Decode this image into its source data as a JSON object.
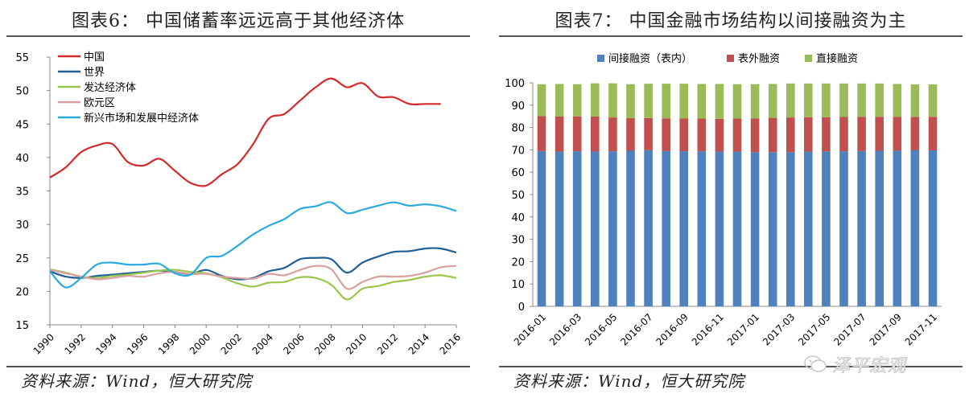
{
  "left": {
    "title": "图表6：  中国储蓄率远远高于其他经济体",
    "source": "资料来源：Wind，恒大研究院"
  },
  "right": {
    "title": "图表7：  中国金融市场结构以间接融资为主",
    "source": "资料来源：Wind，恒大研究院"
  },
  "watermark": {
    "text": "泽平宏观",
    "icon": "wechat-bubble-icon"
  },
  "chart_data": [
    {
      "type": "line",
      "title": "",
      "xlabel": "",
      "ylabel": "",
      "x": [
        1990,
        1991,
        1992,
        1993,
        1994,
        1995,
        1996,
        1997,
        1998,
        1999,
        2000,
        2001,
        2002,
        2003,
        2004,
        2005,
        2006,
        2007,
        2008,
        2009,
        2010,
        2011,
        2012,
        2013,
        2014,
        2015,
        2016
      ],
      "xticks": [
        "1990",
        "1992",
        "1994",
        "1996",
        "1998",
        "2000",
        "2002",
        "2004",
        "2006",
        "2008",
        "2010",
        "2012",
        "2014",
        "2016"
      ],
      "ylim": [
        15,
        55
      ],
      "yticks": [
        15,
        20,
        25,
        30,
        35,
        40,
        45,
        50,
        55
      ],
      "legend_position": "top-left",
      "grid": false,
      "series": [
        {
          "name": "中国",
          "color": "#d42a2a",
          "values": [
            37.0,
            38.5,
            40.8,
            41.8,
            42.0,
            39.3,
            38.8,
            39.8,
            38.0,
            36.2,
            35.8,
            37.5,
            39.0,
            42.0,
            45.8,
            46.5,
            48.5,
            50.5,
            51.8,
            50.5,
            51.1,
            49.1,
            49.0,
            48.0,
            48.0,
            48.0,
            null
          ]
        },
        {
          "name": "世界",
          "color": "#1f5f96",
          "values": [
            23.0,
            22.2,
            22.0,
            22.3,
            22.5,
            22.7,
            22.9,
            23.1,
            22.9,
            22.6,
            23.2,
            22.3,
            21.8,
            22.0,
            23.0,
            23.5,
            24.8,
            25.0,
            24.8,
            22.8,
            24.3,
            25.2,
            25.9,
            26.0,
            26.4,
            26.4,
            25.8
          ]
        },
        {
          "name": "发达经济体",
          "color": "#9bc64c",
          "values": [
            23.3,
            22.8,
            22.2,
            22.0,
            22.3,
            22.5,
            22.8,
            23.1,
            23.2,
            22.9,
            22.7,
            22.1,
            21.2,
            20.7,
            21.3,
            21.4,
            22.1,
            22.0,
            21.0,
            18.8,
            20.4,
            20.8,
            21.4,
            21.7,
            22.2,
            22.4,
            22.0
          ]
        },
        {
          "name": "欧元区",
          "color": "#d8a0a0",
          "values": [
            23.2,
            22.7,
            22.2,
            21.8,
            22.0,
            22.3,
            22.2,
            22.7,
            22.9,
            22.6,
            22.6,
            22.2,
            22.0,
            21.9,
            22.6,
            22.4,
            23.2,
            23.8,
            23.3,
            20.4,
            21.4,
            22.2,
            22.2,
            22.3,
            22.8,
            23.6,
            23.8
          ]
        },
        {
          "name": "新兴市场和发展中经济体",
          "color": "#2aaadc",
          "values": [
            23.0,
            20.6,
            22.0,
            24.0,
            24.3,
            24.0,
            24.0,
            24.1,
            22.7,
            22.5,
            25.0,
            25.3,
            26.8,
            28.5,
            29.8,
            30.8,
            32.3,
            32.7,
            33.3,
            31.7,
            32.2,
            32.8,
            33.3,
            32.8,
            33.0,
            32.7,
            32.0
          ]
        }
      ]
    },
    {
      "type": "bar",
      "stacked": true,
      "title": "",
      "categories": [
        "2016-01",
        "2016-02",
        "2016-03",
        "2016-04",
        "2016-05",
        "2016-06",
        "2016-07",
        "2016-08",
        "2016-09",
        "2016-10",
        "2016-11",
        "2016-12",
        "2017-01",
        "2017-02",
        "2017-03",
        "2017-04",
        "2017-05",
        "2017-06",
        "2017-07",
        "2017-08",
        "2017-09",
        "2017-10",
        "2017-11"
      ],
      "xticks": [
        "2016-01",
        "2016-03",
        "2016-05",
        "2016-07",
        "2016-09",
        "2016-11",
        "2017-01",
        "2017-03",
        "2017-05",
        "2017-07",
        "2017-09",
        "2017-11"
      ],
      "ylim": [
        0,
        100
      ],
      "yticks": [
        0,
        10,
        20,
        30,
        40,
        50,
        60,
        70,
        80,
        90,
        100
      ],
      "legend_position": "top",
      "grid": false,
      "series": [
        {
          "name": "间接融资（表内）",
          "color": "#4f81bd",
          "values": [
            69.5,
            69.2,
            69.4,
            69.3,
            69.4,
            69.6,
            69.8,
            69.5,
            69.4,
            69.4,
            69.3,
            69.2,
            69.0,
            69.0,
            69.0,
            69.2,
            69.3,
            69.4,
            69.5,
            69.6,
            69.7,
            69.8,
            69.8
          ]
        },
        {
          "name": "表外融资",
          "color": "#c0504d",
          "values": [
            15.6,
            15.7,
            15.6,
            15.6,
            15.1,
            14.6,
            14.4,
            14.6,
            14.6,
            14.6,
            14.6,
            14.8,
            15.1,
            15.3,
            15.5,
            15.4,
            15.3,
            15.3,
            15.3,
            15.2,
            15.1,
            15.0,
            15.0
          ]
        },
        {
          "name": "直接融资",
          "color": "#9bbb59",
          "values": [
            14.3,
            14.6,
            14.4,
            14.9,
            15.3,
            15.2,
            15.4,
            15.5,
            15.6,
            15.5,
            15.6,
            15.4,
            15.3,
            15.2,
            15.2,
            15.1,
            15.1,
            15.0,
            14.9,
            14.9,
            14.7,
            14.5,
            14.5
          ]
        }
      ]
    }
  ]
}
